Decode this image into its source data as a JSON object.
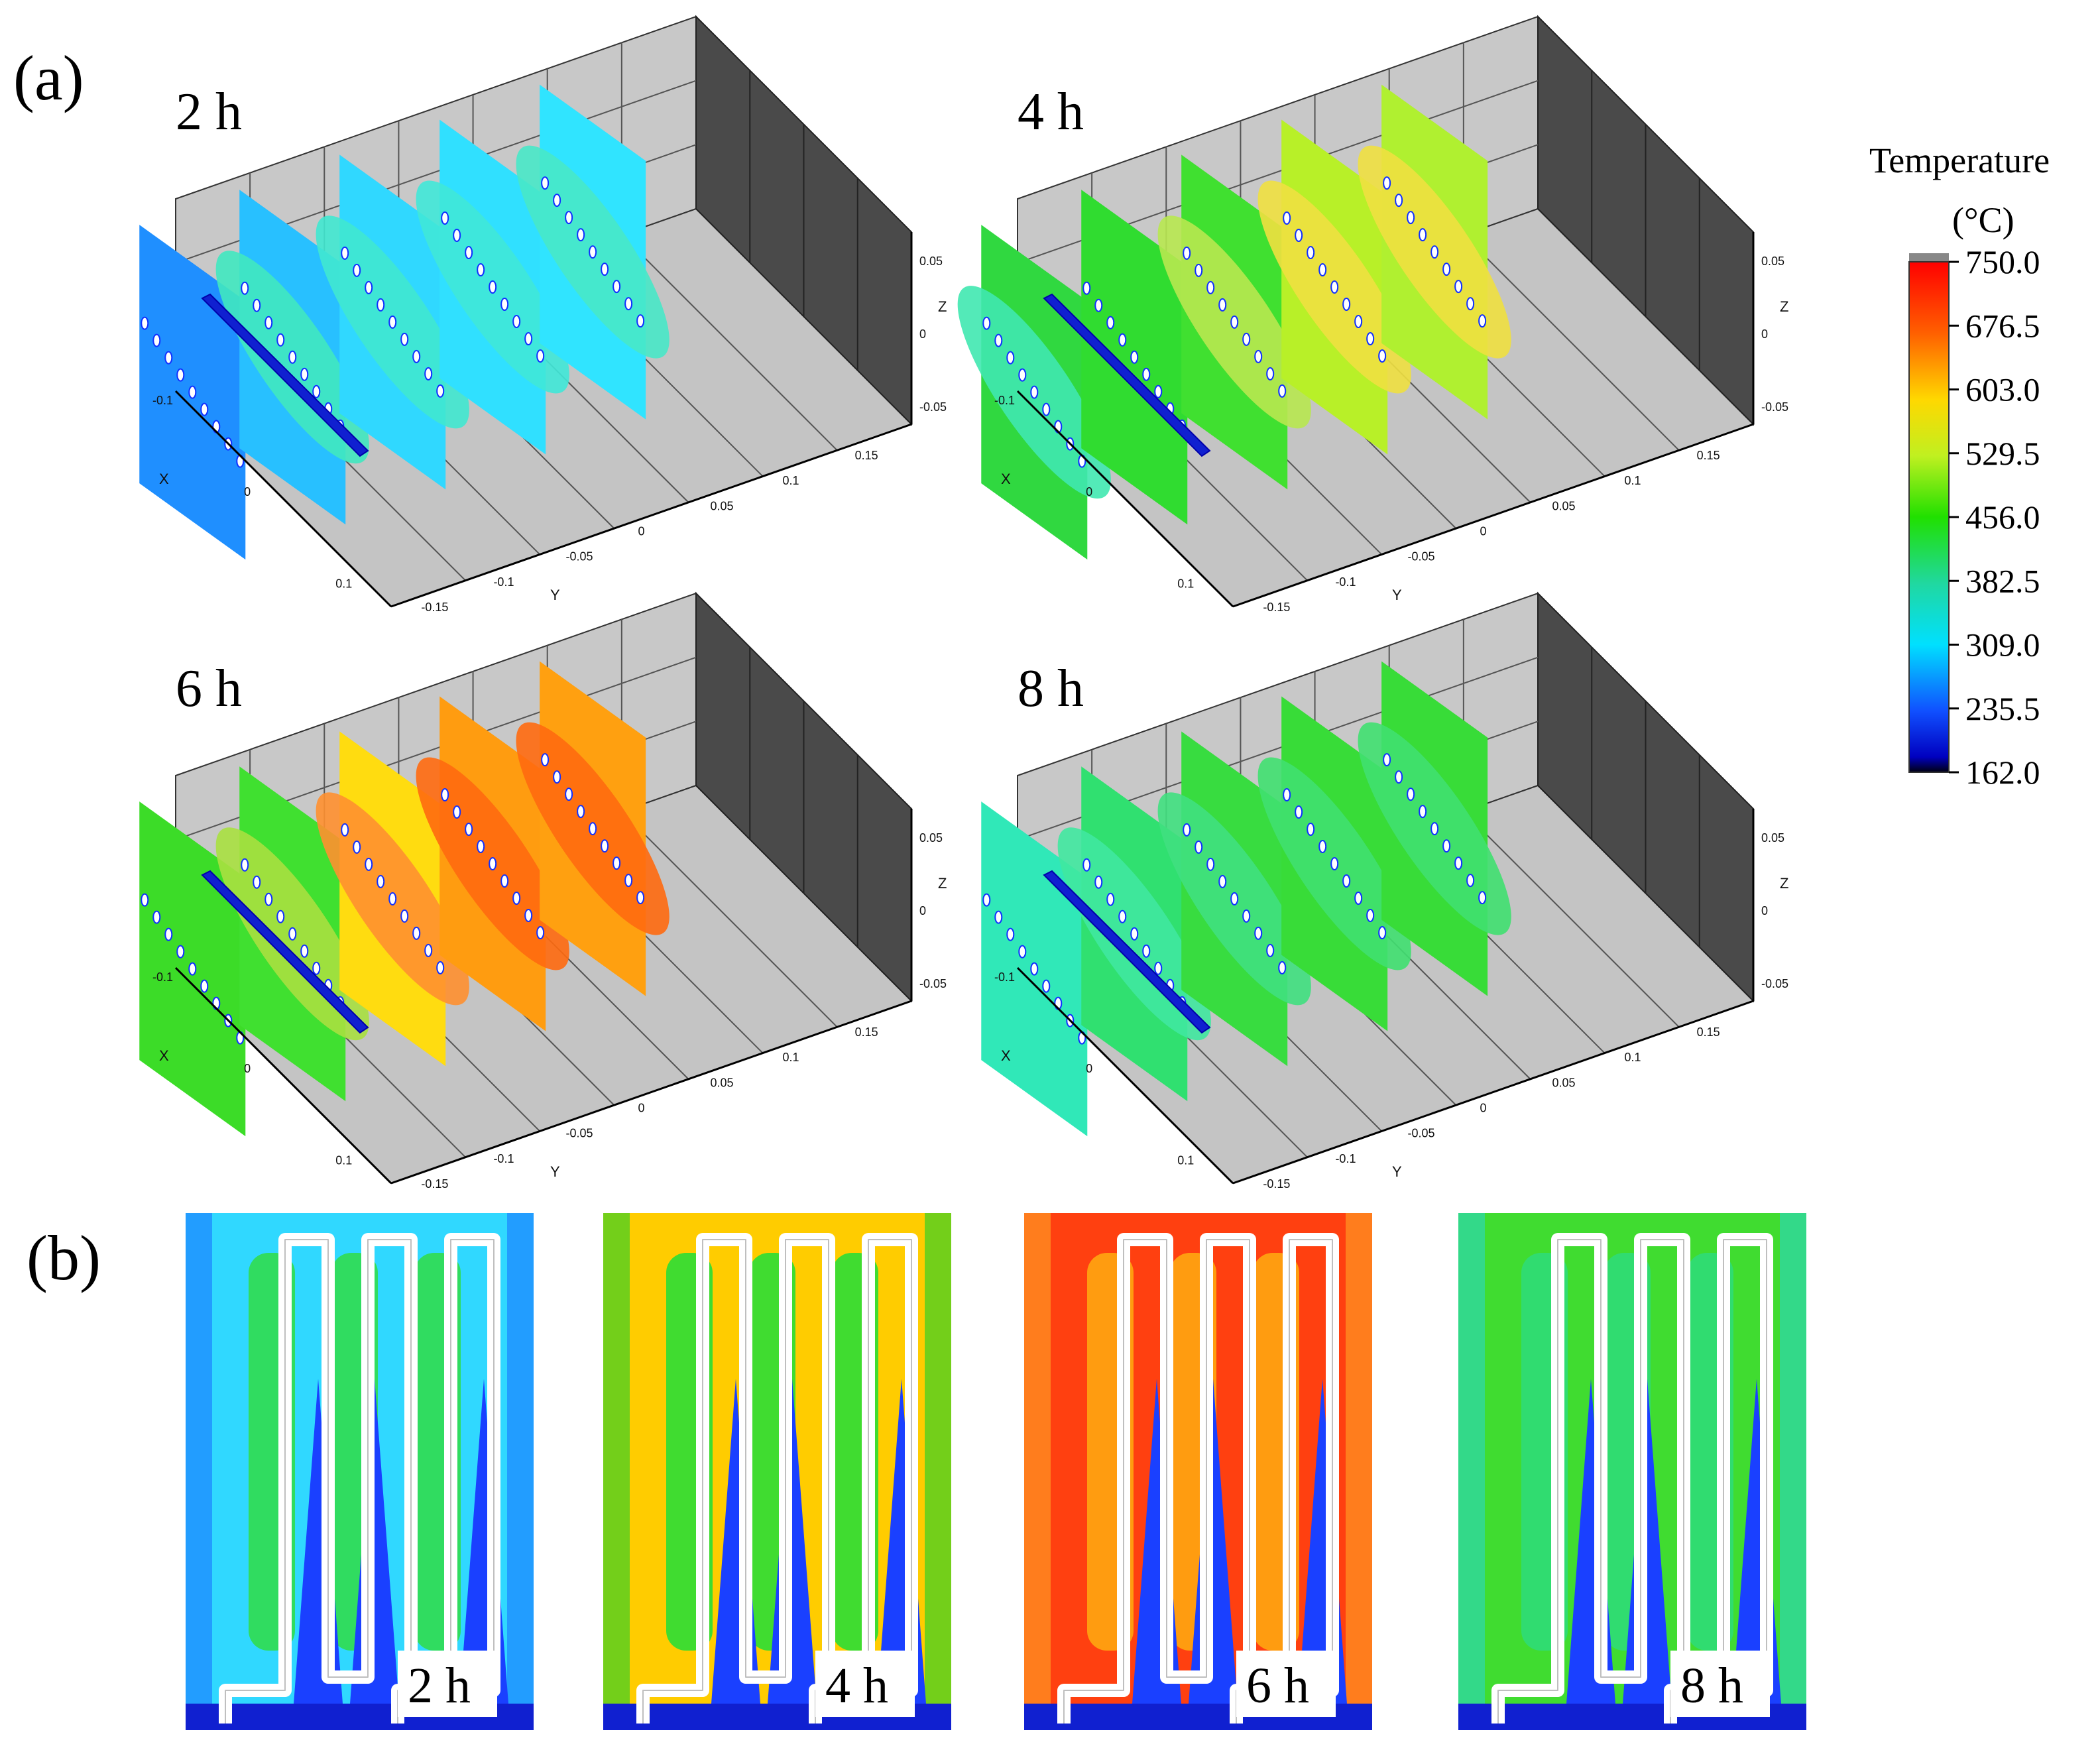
{
  "panel_a_label": "(a)",
  "panel_b_label": "(b)",
  "colorbar": {
    "title": "Temperature",
    "unit": "(°C)",
    "ticks": [
      "750.0",
      "676.5",
      "603.0",
      "529.5",
      "456.0",
      "382.5",
      "309.0",
      "235.5",
      "162.0"
    ],
    "colors": [
      "#ff1010",
      "#ff6a00",
      "#ffd000",
      "#d8f020",
      "#50e000",
      "#20d060",
      "#00e0ff",
      "#1060ff",
      "#0000aa"
    ]
  },
  "axes": {
    "x_name": "X",
    "y_name": "Y",
    "z_name": "Z",
    "x_ticks": [
      "-0.1",
      "0",
      "0.1"
    ],
    "y_ticks": [
      "-0.15",
      "-0.1",
      "-0.05",
      "0",
      "0.05",
      "0.1",
      "0.15"
    ],
    "z_ticks": [
      "0.05",
      "0",
      "-0.05"
    ]
  },
  "panels_3d": [
    {
      "time": "2 h",
      "slice_colors": [
        "#1f8fff",
        "#28c0ff",
        "#30d8ff",
        "#30e0ff",
        "#30e4ff"
      ],
      "ellipse_colors": [
        "",
        "#40e8c0",
        "#40e8d0",
        "#40e8d8",
        "#48e8c8"
      ]
    },
    {
      "time": "4 h",
      "slice_colors": [
        "#30d840",
        "#30dc30",
        "#40e030",
        "#b8f028",
        "#b0f030"
      ],
      "ellipse_colors": [
        "#40e8b0",
        "",
        "#b8e850",
        "#f0e040",
        "#f0e040"
      ]
    },
    {
      "time": "6 h",
      "slice_colors": [
        "#3cdc28",
        "#40e030",
        "#ffdc10",
        "#ff9c10",
        "#ffa010"
      ],
      "ellipse_colors": [
        "",
        "#a8e040",
        "#ff9030",
        "#ff6a10",
        "#ff6a10"
      ]
    },
    {
      "time": "8 h",
      "slice_colors": [
        "#30e8b8",
        "#30e070",
        "#38dc40",
        "#38dc38",
        "#38dc38"
      ],
      "ellipse_colors": [
        "",
        "#40e8a0",
        "#40e080",
        "#40e070",
        "#40e070"
      ]
    }
  ],
  "panels_2d": [
    {
      "time": "2 h",
      "bg": "#30d8ff",
      "inner": "#30dc60",
      "edge": "#1f8fff"
    },
    {
      "time": "4 h",
      "bg": "#ffcc00",
      "inner": "#40dc30",
      "edge": "#50d020"
    },
    {
      "time": "6 h",
      "bg": "#ff4010",
      "inner": "#ff9c10",
      "edge": "#ff8c20"
    },
    {
      "time": "8 h",
      "bg": "#40dc30",
      "inner": "#30dc70",
      "edge": "#30d8a0"
    }
  ]
}
